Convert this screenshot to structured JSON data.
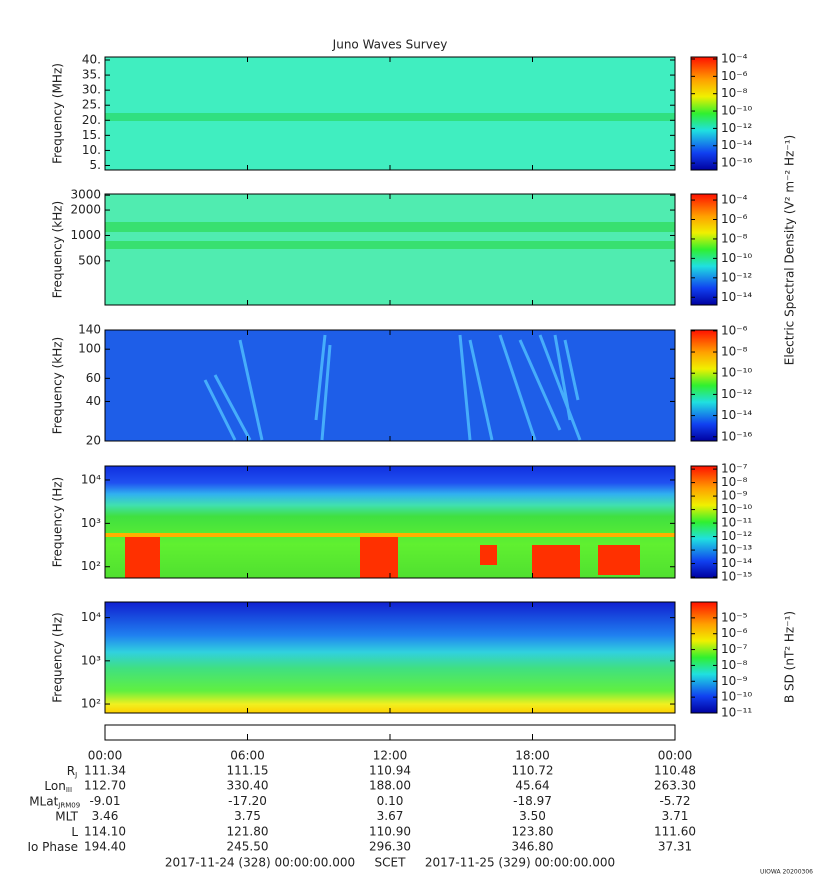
{
  "title": "Juno Waves Survey",
  "panels": [
    {
      "ylabel": "Frequency (MHz)",
      "yscale": "linear",
      "ylim": [
        3.5,
        41
      ],
      "yticks": [
        {
          "value": 5,
          "label": "5."
        },
        {
          "value": 10,
          "label": "10."
        },
        {
          "value": 15,
          "label": "15."
        },
        {
          "value": 20,
          "label": "20."
        },
        {
          "value": 25,
          "label": "25."
        },
        {
          "value": 30,
          "label": "30."
        },
        {
          "value": 35,
          "label": "35."
        },
        {
          "value": 40,
          "label": "40."
        }
      ],
      "cscale": "log",
      "clim": [
        1.6e-17,
        0.00017
      ],
      "cticks": [
        {
          "value": 1e-16,
          "label": "10⁻¹⁶"
        },
        {
          "value": 1e-14,
          "label": "10⁻¹⁴"
        },
        {
          "value": 1e-12,
          "label": "10⁻¹²"
        },
        {
          "value": 1e-10,
          "label": "10⁻¹⁰"
        },
        {
          "value": 1e-08,
          "label": "10⁻⁸"
        },
        {
          "value": 1e-06,
          "label": "10⁻⁶"
        },
        {
          "value": 0.0001,
          "label": "10⁻⁴"
        }
      ]
    },
    {
      "ylabel": "Frequency (kHz)",
      "yscale": "log",
      "ylim": [
        150,
        3100
      ],
      "yticks": [
        500,
        1000,
        2000,
        3000
      ],
      "cscale": "log",
      "clim": [
        1.6e-15,
        0.00042
      ],
      "cticks": [
        {
          "value": 1e-14,
          "label": "10⁻¹⁴"
        },
        {
          "value": 1e-12,
          "label": "10⁻¹²"
        },
        {
          "value": 1e-10,
          "label": "10⁻¹⁰"
        },
        {
          "value": 1e-08,
          "label": "10⁻⁸"
        },
        {
          "value": 1e-06,
          "label": "10⁻⁶"
        },
        {
          "value": 0.0001,
          "label": "10⁻⁴"
        }
      ]
    },
    {
      "ylabel": "Frequency (kHz)",
      "yscale": "log",
      "ylim": [
        20,
        140
      ],
      "yticks": [
        20,
        40,
        60,
        100,
        140
      ],
      "cscale": "log",
      "clim": [
        4e-17,
        1.2e-06
      ],
      "cticks": [
        {
          "value": 1e-16,
          "label": "10⁻¹⁶"
        },
        {
          "value": 1e-14,
          "label": "10⁻¹⁴"
        },
        {
          "value": 1e-12,
          "label": "10⁻¹²"
        },
        {
          "value": 1e-10,
          "label": "10⁻¹⁰"
        },
        {
          "value": 1e-08,
          "label": "10⁻⁸"
        },
        {
          "value": 1e-06,
          "label": "10⁻⁶"
        }
      ]
    },
    {
      "ylabel": "Frequency (Hz)",
      "yscale": "log",
      "ylim": [
        55,
        21000
      ],
      "yticks": [
        {
          "value": 100,
          "label": "10²"
        },
        {
          "value": 1000,
          "label": "10³"
        },
        {
          "value": 10000,
          "label": "10⁴"
        }
      ],
      "cscale": "log",
      "clim": [
        8.5e-16,
        1.7e-07
      ],
      "cticks": [
        {
          "value": 1e-15,
          "label": "10⁻¹⁵"
        },
        {
          "value": 1e-14,
          "label": "10⁻¹⁴"
        },
        {
          "value": 1e-13,
          "label": "10⁻¹³"
        },
        {
          "value": 1e-12,
          "label": "10⁻¹²"
        },
        {
          "value": 1e-11,
          "label": "10⁻¹¹"
        },
        {
          "value": 1e-10,
          "label": "10⁻¹⁰"
        },
        {
          "value": 1e-09,
          "label": "10⁻⁹"
        },
        {
          "value": 1e-08,
          "label": "10⁻⁸"
        },
        {
          "value": 1e-07,
          "label": "10⁻⁷"
        }
      ]
    },
    {
      "ylabel": "Frequency (Hz)",
      "yscale": "log",
      "ylim": [
        62,
        23000
      ],
      "yticks": [
        {
          "value": 100,
          "label": "10²"
        },
        {
          "value": 1000,
          "label": "10³"
        },
        {
          "value": 10000,
          "label": "10⁴"
        }
      ],
      "cscale": "log",
      "clim": [
        1e-11,
        0.0001
      ],
      "cticks": [
        {
          "value": 1e-11,
          "label": "10⁻¹¹"
        },
        {
          "value": 1e-10,
          "label": "10⁻¹⁰"
        },
        {
          "value": 1e-09,
          "label": "10⁻⁹"
        },
        {
          "value": 1e-08,
          "label": "10⁻⁸"
        },
        {
          "value": 1e-07,
          "label": "10⁻⁷"
        },
        {
          "value": 1e-06,
          "label": "10⁻⁶"
        },
        {
          "value": 1e-05,
          "label": "10⁻⁵"
        }
      ]
    }
  ],
  "colorbar_labels": {
    "electric": "Electric Spectral Density (V² m⁻² Hz⁻¹)",
    "magnetic": "B SD (nT² Hz⁻¹)"
  },
  "time_axis": {
    "xlim": [
      0,
      24
    ],
    "xticks": [
      {
        "value": 0,
        "label": "00:00"
      },
      {
        "value": 6,
        "label": "06:00"
      },
      {
        "value": 12,
        "label": "12:00"
      },
      {
        "value": 18,
        "label": "18:00"
      },
      {
        "value": 24,
        "label": "00:00"
      }
    ]
  },
  "ephemeris": [
    {
      "label": "R",
      "sub": "J",
      "values": [
        "111.34",
        "111.15",
        "110.94",
        "110.72",
        "110.48"
      ]
    },
    {
      "label": "Lon",
      "sub": "III",
      "values": [
        "112.70",
        "330.40",
        "188.00",
        "45.64",
        "263.30"
      ]
    },
    {
      "label": "MLat",
      "sub": "JRM09",
      "values": [
        "-9.01",
        "-17.20",
        "0.10",
        "-18.97",
        "-5.72"
      ]
    },
    {
      "label": "MLT",
      "values": [
        "3.46",
        "3.75",
        "3.67",
        "3.50",
        "3.71"
      ]
    },
    {
      "label": "L",
      "values": [
        "114.10",
        "121.80",
        "110.90",
        "123.80",
        "111.60"
      ]
    },
    {
      "label": "Io Phase",
      "values": [
        "194.40",
        "245.50",
        "296.30",
        "346.80",
        "37.31"
      ]
    }
  ],
  "footer": {
    "start": "2017-11-24 (328) 00:00:00.000",
    "scet": "SCET",
    "end": "2017-11-25 (329) 00:00:00.000"
  },
  "credit": "UIOWA 20200306"
}
